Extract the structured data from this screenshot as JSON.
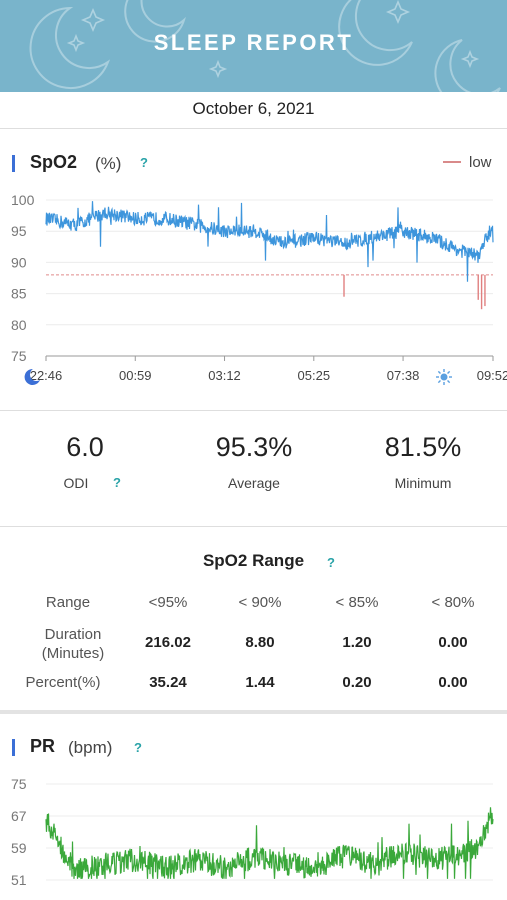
{
  "header": {
    "title": "SLEEP REPORT"
  },
  "date": "October 6, 2021",
  "spo2": {
    "title": "SpO2",
    "unit": "(%)",
    "help": "?",
    "legend": {
      "label": "low",
      "color": "#d98a8a"
    },
    "icons": [
      "moon-icon",
      "sun-icon"
    ],
    "line_color": "#3d95dc",
    "threshold": 88
  },
  "stats": {
    "odi": {
      "value": "6.0",
      "label": "ODI",
      "help": "?"
    },
    "average": {
      "value": "95.3%",
      "label": "Average"
    },
    "minimum": {
      "value": "81.5%",
      "label": "Minimum"
    }
  },
  "range": {
    "title": "SpO2 Range",
    "help": "?",
    "row_labels": [
      "Range",
      "Duration\n(Minutes)",
      "Percent(%)"
    ],
    "columns": [
      "<95%",
      "< 90%",
      "< 85%",
      "< 80%"
    ],
    "duration": [
      "216.02",
      "8.80",
      "1.20",
      "0.00"
    ],
    "percent": [
      "35.24",
      "1.44",
      "0.20",
      "0.00"
    ]
  },
  "pr": {
    "title": "PR",
    "unit": "(bpm)",
    "help": "?",
    "line_color": "#3aa83a"
  },
  "chart_data": [
    {
      "type": "line",
      "title": "SpO2",
      "ylabel": "(%)",
      "ylim": [
        75,
        100
      ],
      "yticks": [
        "100",
        "95",
        "90",
        "85",
        "80",
        "75"
      ],
      "xticks": [
        "22:46",
        "00:59",
        "03:12",
        "05:25",
        "07:38",
        "09:52"
      ],
      "x": [
        "22:46",
        "23:30",
        "00:15",
        "00:59",
        "01:45",
        "02:30",
        "03:12",
        "04:00",
        "04:40",
        "05:25",
        "06:10",
        "06:50",
        "07:38",
        "08:20",
        "09:00",
        "09:30",
        "09:52"
      ],
      "series": [
        {
          "name": "SpO2",
          "values": [
            97,
            96,
            98,
            97,
            97,
            96,
            95,
            95,
            93,
            94,
            93,
            94,
            95,
            94,
            92,
            91,
            96
          ]
        }
      ],
      "threshold": 88,
      "legend": "top-right",
      "grid": true
    },
    {
      "type": "line",
      "title": "PR",
      "ylabel": "(bpm)",
      "ylim": [
        51,
        75
      ],
      "yticks": [
        "75",
        "67",
        "59",
        "51"
      ],
      "x": [
        "22:46",
        "23:30",
        "00:15",
        "00:59",
        "01:45",
        "02:30",
        "03:12",
        "04:00",
        "04:40",
        "05:25",
        "06:10",
        "06:50",
        "07:38",
        "08:20",
        "09:00",
        "09:30",
        "09:52"
      ],
      "series": [
        {
          "name": "PR",
          "values": [
            66,
            53,
            55,
            56,
            54,
            56,
            54,
            57,
            55,
            54,
            57,
            55,
            58,
            56,
            57,
            59,
            68
          ]
        }
      ],
      "grid": true
    }
  ]
}
